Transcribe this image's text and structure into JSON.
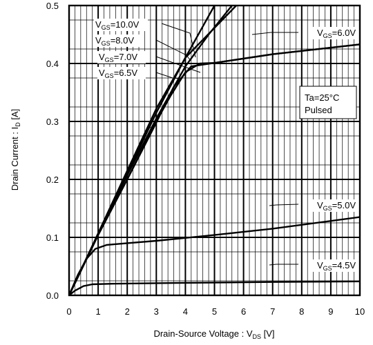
{
  "chart_data": {
    "type": "line",
    "xlabel": "Drain-Source Voltage : V",
    "xlabel_sub": "DS",
    "xlabel_unit": " [V]",
    "ylabel": "Drain Current : I",
    "ylabel_sub": "D",
    "ylabel_unit": " [A]",
    "xlim": [
      0,
      10
    ],
    "ylim": [
      0,
      0.5
    ],
    "x_ticks": [
      "0",
      "1",
      "2",
      "3",
      "4",
      "5",
      "6",
      "7",
      "8",
      "9",
      "10"
    ],
    "y_ticks": [
      "0.0",
      "0.1",
      "0.2",
      "0.3",
      "0.4",
      "0.5"
    ],
    "x_minor_step": 0.2,
    "grid": true,
    "annotation_box": {
      "line1": "Ta=25°C",
      "line2": "Pulsed"
    },
    "series": [
      {
        "name": "V_GS=10.0V",
        "label_pre": "V",
        "label_sub": "GS",
        "label_post": "=10.0V",
        "points": [
          [
            0,
            0
          ],
          [
            1,
            0.107
          ],
          [
            2,
            0.215
          ],
          [
            3,
            0.322
          ],
          [
            4,
            0.41
          ],
          [
            5,
            0.5
          ]
        ]
      },
      {
        "name": "V_GS=8.0V",
        "label_pre": "V",
        "label_sub": "GS",
        "label_post": "=8.0V",
        "points": [
          [
            0,
            0
          ],
          [
            1,
            0.105
          ],
          [
            2,
            0.21
          ],
          [
            3,
            0.315
          ],
          [
            4,
            0.41
          ],
          [
            5.75,
            0.5
          ]
        ]
      },
      {
        "name": "V_GS=7.0V",
        "label_pre": "V",
        "label_sub": "GS",
        "label_post": "=7.0V",
        "points": [
          [
            0,
            0
          ],
          [
            1,
            0.105
          ],
          [
            2,
            0.207
          ],
          [
            3,
            0.305
          ],
          [
            4,
            0.395
          ],
          [
            4.8,
            0.45
          ],
          [
            5.6,
            0.5
          ]
        ]
      },
      {
        "name": "V_GS=6.5V",
        "label_pre": "V",
        "label_sub": "GS",
        "label_post": "=6.5V",
        "points": [
          [
            0,
            0
          ],
          [
            1,
            0.104
          ],
          [
            2,
            0.2
          ],
          [
            3,
            0.3
          ],
          [
            3.5,
            0.345
          ],
          [
            4,
            0.385
          ],
          [
            4.5,
            0.4
          ],
          [
            5,
            0.401
          ],
          [
            7,
            0.416
          ],
          [
            10,
            0.433
          ]
        ]
      },
      {
        "name": "V_GS=6.0V",
        "label_pre": "V",
        "label_sub": "GS",
        "label_post": "=6.0V",
        "points": [
          [
            0,
            0
          ],
          [
            1,
            0.104
          ],
          [
            2,
            0.2
          ],
          [
            3,
            0.298
          ],
          [
            3.6,
            0.36
          ],
          [
            4.2,
            0.395
          ],
          [
            5,
            0.401
          ],
          [
            7,
            0.416
          ],
          [
            10,
            0.433
          ]
        ]
      },
      {
        "name": "V_GS=5.0V",
        "label_pre": "V",
        "label_sub": "GS",
        "label_post": "=5.0V",
        "points": [
          [
            0,
            0
          ],
          [
            0.3,
            0.035
          ],
          [
            0.6,
            0.063
          ],
          [
            0.9,
            0.08
          ],
          [
            1.3,
            0.087
          ],
          [
            2,
            0.09
          ],
          [
            3,
            0.094
          ],
          [
            4,
            0.099
          ],
          [
            5,
            0.104
          ],
          [
            7,
            0.115
          ],
          [
            10,
            0.135
          ]
        ]
      },
      {
        "name": "V_GS=4.5V",
        "label_pre": "V",
        "label_sub": "GS",
        "label_post": "=4.5V",
        "points": [
          [
            0,
            0
          ],
          [
            0.2,
            0.008
          ],
          [
            0.5,
            0.016
          ],
          [
            0.8,
            0.019
          ],
          [
            1.5,
            0.02
          ],
          [
            3,
            0.021
          ],
          [
            5,
            0.022
          ],
          [
            7,
            0.023
          ],
          [
            10,
            0.024
          ]
        ]
      }
    ],
    "series_labels": [
      {
        "series": 0,
        "pre": "V",
        "sub": "GS",
        "post": "=10.0V"
      },
      {
        "series": 1,
        "pre": "V",
        "sub": "GS",
        "post": "=8.0V"
      },
      {
        "series": 2,
        "pre": "V",
        "sub": "GS",
        "post": "=7.0V"
      },
      {
        "series": 3,
        "pre": "V",
        "sub": "GS",
        "post": "=6.5V"
      },
      {
        "series": 4,
        "pre": "V",
        "sub": "GS",
        "post": "=6.0V"
      },
      {
        "series": 5,
        "pre": "V",
        "sub": "GS",
        "post": "=5.0V"
      },
      {
        "series": 6,
        "pre": "V",
        "sub": "GS",
        "post": "=4.5V"
      }
    ]
  }
}
